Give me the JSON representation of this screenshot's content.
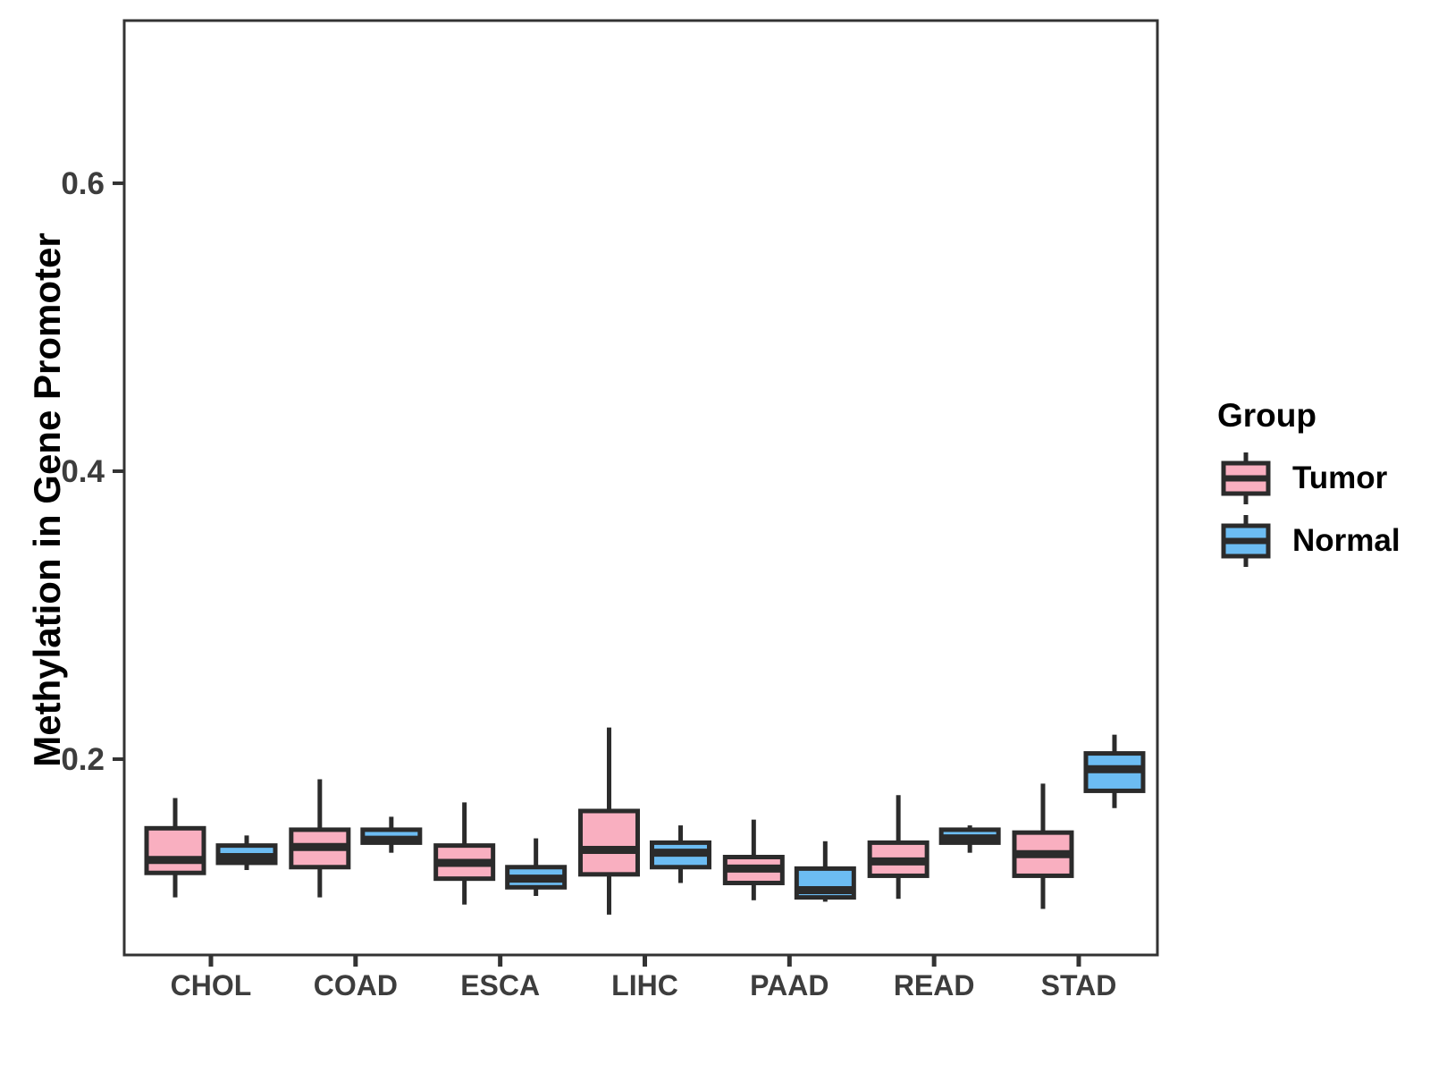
{
  "chart_data": {
    "type": "boxplot",
    "title": "",
    "xlabel": "",
    "ylabel": "Methylation in Gene Promoter",
    "categories": [
      "CHOL",
      "COAD",
      "ESCA",
      "LIHC",
      "PAAD",
      "READ",
      "STAD"
    ],
    "y_ticks": [
      0.2,
      0.4,
      0.6
    ],
    "y_tick_labels": [
      "0.2",
      "0.4",
      "0.6"
    ],
    "ylim": [
      0.064,
      0.713
    ],
    "grid": false,
    "legend_position": "right",
    "colors": {
      "tumor_fill": "#F9AFC0",
      "normal_fill": "#6CBCF2",
      "box_stroke": "#2B2B2B",
      "panel_border": "#333333",
      "tick_text": "#3D3D3D"
    },
    "series": [
      {
        "name": "Tumor",
        "fill": "#F9AFC0",
        "boxes": [
          {
            "category": "CHOL",
            "low": 0.104,
            "q1": 0.121,
            "median": 0.13,
            "q3": 0.152,
            "high": 0.173
          },
          {
            "category": "COAD",
            "low": 0.104,
            "q1": 0.125,
            "median": 0.139,
            "q3": 0.151,
            "high": 0.186
          },
          {
            "category": "ESCA",
            "low": 0.099,
            "q1": 0.117,
            "median": 0.128,
            "q3": 0.14,
            "high": 0.17
          },
          {
            "category": "LIHC",
            "low": 0.092,
            "q1": 0.12,
            "median": 0.137,
            "q3": 0.164,
            "high": 0.222
          },
          {
            "category": "PAAD",
            "low": 0.102,
            "q1": 0.114,
            "median": 0.124,
            "q3": 0.132,
            "high": 0.158
          },
          {
            "category": "READ",
            "low": 0.103,
            "q1": 0.119,
            "median": 0.129,
            "q3": 0.142,
            "high": 0.175
          },
          {
            "category": "STAD",
            "low": 0.096,
            "q1": 0.119,
            "median": 0.134,
            "q3": 0.149,
            "high": 0.183
          }
        ]
      },
      {
        "name": "Normal",
        "fill": "#6CBCF2",
        "boxes": [
          {
            "category": "CHOL",
            "low": 0.123,
            "q1": 0.128,
            "median": 0.132,
            "q3": 0.14,
            "high": 0.147
          },
          {
            "category": "COAD",
            "low": 0.135,
            "q1": 0.142,
            "median": 0.144,
            "q3": 0.151,
            "high": 0.16
          },
          {
            "category": "ESCA",
            "low": 0.105,
            "q1": 0.111,
            "median": 0.117,
            "q3": 0.125,
            "high": 0.145
          },
          {
            "category": "LIHC",
            "low": 0.114,
            "q1": 0.125,
            "median": 0.135,
            "q3": 0.142,
            "high": 0.154
          },
          {
            "category": "PAAD",
            "low": 0.101,
            "q1": 0.104,
            "median": 0.109,
            "q3": 0.124,
            "high": 0.143
          },
          {
            "category": "READ",
            "low": 0.135,
            "q1": 0.142,
            "median": 0.145,
            "q3": 0.151,
            "high": 0.154
          },
          {
            "category": "STAD",
            "low": 0.166,
            "q1": 0.178,
            "median": 0.193,
            "q3": 0.204,
            "high": 0.217
          }
        ]
      }
    ]
  },
  "legend": {
    "title": "Group",
    "items": [
      {
        "label": "Tumor",
        "color": "#F9AFC0"
      },
      {
        "label": "Normal",
        "color": "#6CBCF2"
      }
    ]
  }
}
